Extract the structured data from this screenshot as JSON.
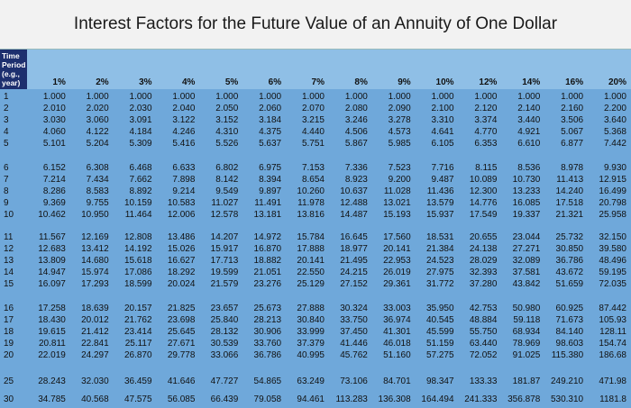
{
  "header": {
    "title": "Interest Factors for the Future Value of an Annuity of One Dollar"
  },
  "table": {
    "period_label": "Time Period (e.g., year)",
    "columns": [
      "1%",
      "2%",
      "3%",
      "4%",
      "5%",
      "6%",
      "7%",
      "8%",
      "9%",
      "10%",
      "12%",
      "14%",
      "16%",
      "20%"
    ],
    "rows": [
      [
        "1",
        "1.000",
        "1.000",
        "1.000",
        "1.000",
        "1.000",
        "1.000",
        "1.000",
        "1.000",
        "1.000",
        "1.000",
        "1.000",
        "1.000",
        "1.000",
        "1.000"
      ],
      [
        "2",
        "2.010",
        "2.020",
        "2.030",
        "2.040",
        "2.050",
        "2.060",
        "2.070",
        "2.080",
        "2.090",
        "2.100",
        "2.120",
        "2.140",
        "2.160",
        "2.200"
      ],
      [
        "3",
        "3.030",
        "3.060",
        "3.091",
        "3.122",
        "3.152",
        "3.184",
        "3.215",
        "3.246",
        "3.278",
        "3.310",
        "3.374",
        "3.440",
        "3.506",
        "3.640"
      ],
      [
        "4",
        "4.060",
        "4.122",
        "4.184",
        "4.246",
        "4.310",
        "4.375",
        "4.440",
        "4.506",
        "4.573",
        "4.641",
        "4.770",
        "4.921",
        "5.067",
        "5.368"
      ],
      [
        "5",
        "5.101",
        "5.204",
        "5.309",
        "5.416",
        "5.526",
        "5.637",
        "5.751",
        "5.867",
        "5.985",
        "6.105",
        "6.353",
        "6.610",
        "6.877",
        "7.442"
      ],
      [
        "6",
        "6.152",
        "6.308",
        "6.468",
        "6.633",
        "6.802",
        "6.975",
        "7.153",
        "7.336",
        "7.523",
        "7.716",
        "8.115",
        "8.536",
        "8.978",
        "9.930"
      ],
      [
        "7",
        "7.214",
        "7.434",
        "7.662",
        "7.898",
        "8.142",
        "8.394",
        "8.654",
        "8.923",
        "9.200",
        "9.487",
        "10.089",
        "10.730",
        "11.413",
        "12.915"
      ],
      [
        "8",
        "8.286",
        "8.583",
        "8.892",
        "9.214",
        "9.549",
        "9.897",
        "10.260",
        "10.637",
        "11.028",
        "11.436",
        "12.300",
        "13.233",
        "14.240",
        "16.499"
      ],
      [
        "9",
        "9.369",
        "9.755",
        "10.159",
        "10.583",
        "11.027",
        "11.491",
        "11.978",
        "12.488",
        "13.021",
        "13.579",
        "14.776",
        "16.085",
        "17.518",
        "20.798"
      ],
      [
        "10",
        "10.462",
        "10.950",
        "11.464",
        "12.006",
        "12.578",
        "13.181",
        "13.816",
        "14.487",
        "15.193",
        "15.937",
        "17.549",
        "19.337",
        "21.321",
        "25.958"
      ],
      [
        "11",
        "11.567",
        "12.169",
        "12.808",
        "13.486",
        "14.207",
        "14.972",
        "15.784",
        "16.645",
        "17.560",
        "18.531",
        "20.655",
        "23.044",
        "25.732",
        "32.150"
      ],
      [
        "12",
        "12.683",
        "13.412",
        "14.192",
        "15.026",
        "15.917",
        "16.870",
        "17.888",
        "18.977",
        "20.141",
        "21.384",
        "24.138",
        "27.271",
        "30.850",
        "39.580"
      ],
      [
        "13",
        "13.809",
        "14.680",
        "15.618",
        "16.627",
        "17.713",
        "18.882",
        "20.141",
        "21.495",
        "22.953",
        "24.523",
        "28.029",
        "32.089",
        "36.786",
        "48.496"
      ],
      [
        "14",
        "14.947",
        "15.974",
        "17.086",
        "18.292",
        "19.599",
        "21.051",
        "22.550",
        "24.215",
        "26.019",
        "27.975",
        "32.393",
        "37.581",
        "43.672",
        "59.195"
      ],
      [
        "15",
        "16.097",
        "17.293",
        "18.599",
        "20.024",
        "21.579",
        "23.276",
        "25.129",
        "27.152",
        "29.361",
        "31.772",
        "37.280",
        "43.842",
        "51.659",
        "72.035"
      ],
      [
        "16",
        "17.258",
        "18.639",
        "20.157",
        "21.825",
        "23.657",
        "25.673",
        "27.888",
        "30.324",
        "33.003",
        "35.950",
        "42.753",
        "50.980",
        "60.925",
        "87.442"
      ],
      [
        "17",
        "18.430",
        "20.012",
        "21.762",
        "23.698",
        "25.840",
        "28.213",
        "30.840",
        "33.750",
        "36.974",
        "40.545",
        "48.884",
        "59.118",
        "71.673",
        "105.93"
      ],
      [
        "18",
        "19.615",
        "21.412",
        "23.414",
        "25.645",
        "28.132",
        "30.906",
        "33.999",
        "37.450",
        "41.301",
        "45.599",
        "55.750",
        "68.934",
        "84.140",
        "128.11"
      ],
      [
        "19",
        "20.811",
        "22.841",
        "25.117",
        "27.671",
        "30.539",
        "33.760",
        "37.379",
        "41.446",
        "46.018",
        "51.159",
        "63.440",
        "78.969",
        "98.603",
        "154.74"
      ],
      [
        "20",
        "22.019",
        "24.297",
        "26.870",
        "29.778",
        "33.066",
        "36.786",
        "40.995",
        "45.762",
        "51.160",
        "57.275",
        "72.052",
        "91.025",
        "115.380",
        "186.68"
      ],
      [
        "25",
        "28.243",
        "32.030",
        "36.459",
        "41.646",
        "47.727",
        "54.865",
        "63.249",
        "73.106",
        "84.701",
        "98.347",
        "133.33",
        "181.87",
        "249.210",
        "471.98"
      ],
      [
        "30",
        "34.785",
        "40.568",
        "47.575",
        "56.085",
        "66.439",
        "79.058",
        "94.461",
        "113.283",
        "136.308",
        "164.494",
        "241.333",
        "356.878",
        "530.310",
        "1181.8"
      ]
    ]
  }
}
